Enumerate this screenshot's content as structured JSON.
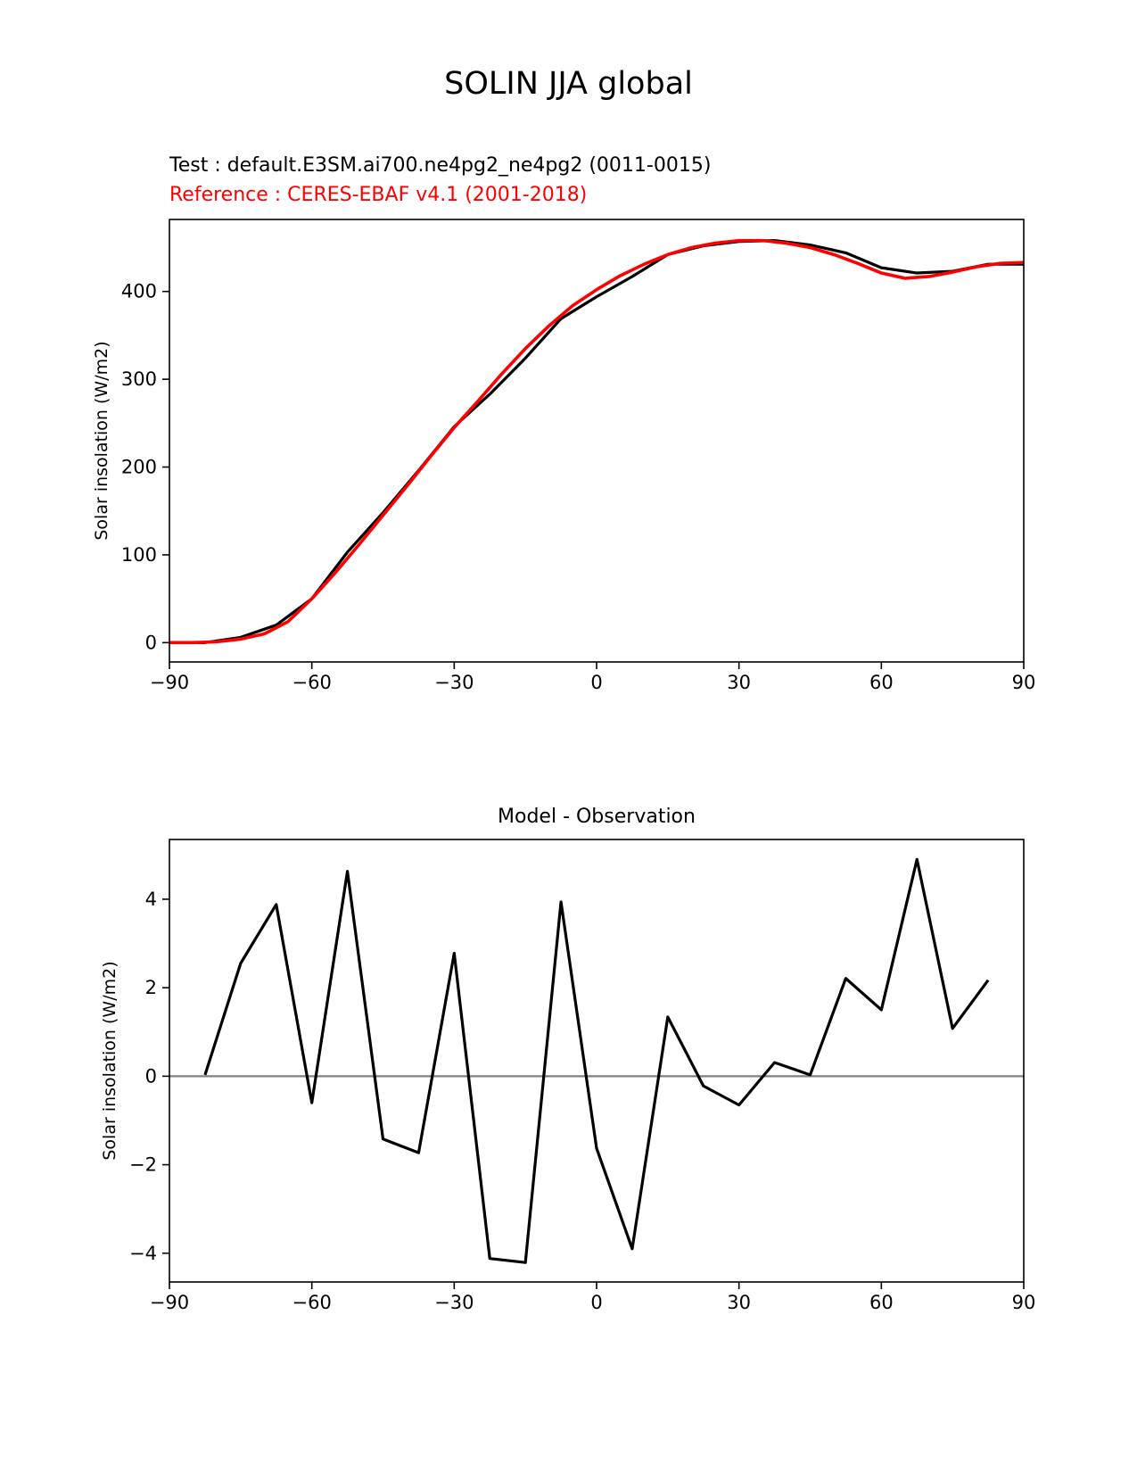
{
  "figure": {
    "title": "SOLIN JJA global",
    "test_label": "Test : default.E3SM.ai700.ne4pg2_ne4pg2 (0011-0015)",
    "reference_label": "Reference : CERES-EBAF v4.1 (2001-2018)",
    "diff_title": "Model - Observation"
  },
  "colors": {
    "test": "#000000",
    "reference": "#ff0000",
    "zero_line": "#808080"
  },
  "chart_data": [
    {
      "type": "line",
      "ylabel": "Solar insolation (W/m2)",
      "xlim": [
        -90,
        90
      ],
      "ylim": [
        -22,
        482
      ],
      "xticks": [
        -90,
        -60,
        -30,
        0,
        30,
        60,
        90
      ],
      "xtick_labels": [
        "−90",
        "−60",
        "−30",
        "0",
        "30",
        "60",
        "90"
      ],
      "yticks": [
        0,
        100,
        200,
        300,
        400
      ],
      "ytick_labels": [
        "0",
        "100",
        "200",
        "300",
        "400"
      ],
      "series": [
        {
          "role": "test",
          "x": [
            -90,
            -82.5,
            -75,
            -67.5,
            -60,
            -52.5,
            -45,
            -37.5,
            -30,
            -22.5,
            -15,
            -7.5,
            0,
            7.5,
            15,
            22.5,
            30,
            37.5,
            45,
            52.5,
            60,
            67.5,
            75,
            82.5,
            90
          ],
          "values": [
            0,
            0,
            6,
            20,
            50,
            103,
            148,
            196,
            246,
            283,
            324,
            369,
            394,
            417,
            442,
            452,
            457,
            458,
            453,
            444,
            427,
            421,
            423,
            431,
            431
          ]
        },
        {
          "role": "reference",
          "x": [
            -90,
            -85,
            -80,
            -75,
            -70,
            -65,
            -60,
            -55,
            -50,
            -45,
            -40,
            -35,
            -30,
            -25,
            -20,
            -15,
            -10,
            -5,
            0,
            5,
            10,
            15,
            20,
            25,
            30,
            35,
            40,
            45,
            50,
            55,
            60,
            65,
            70,
            75,
            80,
            85,
            90
          ],
          "values": [
            0,
            0,
            1,
            4,
            10,
            24,
            50,
            80,
            112,
            145,
            178,
            212,
            245,
            275,
            306,
            335,
            361,
            384,
            402,
            418,
            431,
            442,
            450,
            455,
            458,
            458,
            455,
            450,
            442,
            432,
            421,
            415,
            417,
            422,
            428,
            432,
            433
          ]
        }
      ]
    },
    {
      "type": "line",
      "ylabel": "Solar insolation (W/m2)",
      "xlim": [
        -90,
        90
      ],
      "ylim": [
        -4.65,
        5.35
      ],
      "xticks": [
        -90,
        -60,
        -30,
        0,
        30,
        60,
        90
      ],
      "xtick_labels": [
        "−90",
        "−60",
        "−30",
        "0",
        "30",
        "60",
        "90"
      ],
      "yticks": [
        -4,
        -2,
        0,
        2,
        4
      ],
      "ytick_labels": [
        "−4",
        "−2",
        "0",
        "2",
        "4"
      ],
      "zero_line": 0,
      "series": [
        {
          "role": "difference",
          "x": [
            -82.5,
            -75,
            -67.5,
            -60,
            -52.5,
            -45,
            -37.5,
            -30,
            -22.5,
            -15,
            -7.5,
            0,
            7.5,
            15,
            22.5,
            30,
            37.5,
            45,
            52.5,
            60,
            67.5,
            75,
            82.5
          ],
          "values": [
            0.03,
            2.55,
            3.88,
            -0.6,
            4.63,
            -1.42,
            -1.73,
            2.78,
            -4.12,
            -4.21,
            3.94,
            -1.63,
            -3.9,
            1.34,
            -0.22,
            -0.65,
            0.31,
            0.03,
            2.21,
            1.5,
            4.9,
            1.08,
            2.17
          ]
        }
      ]
    }
  ]
}
